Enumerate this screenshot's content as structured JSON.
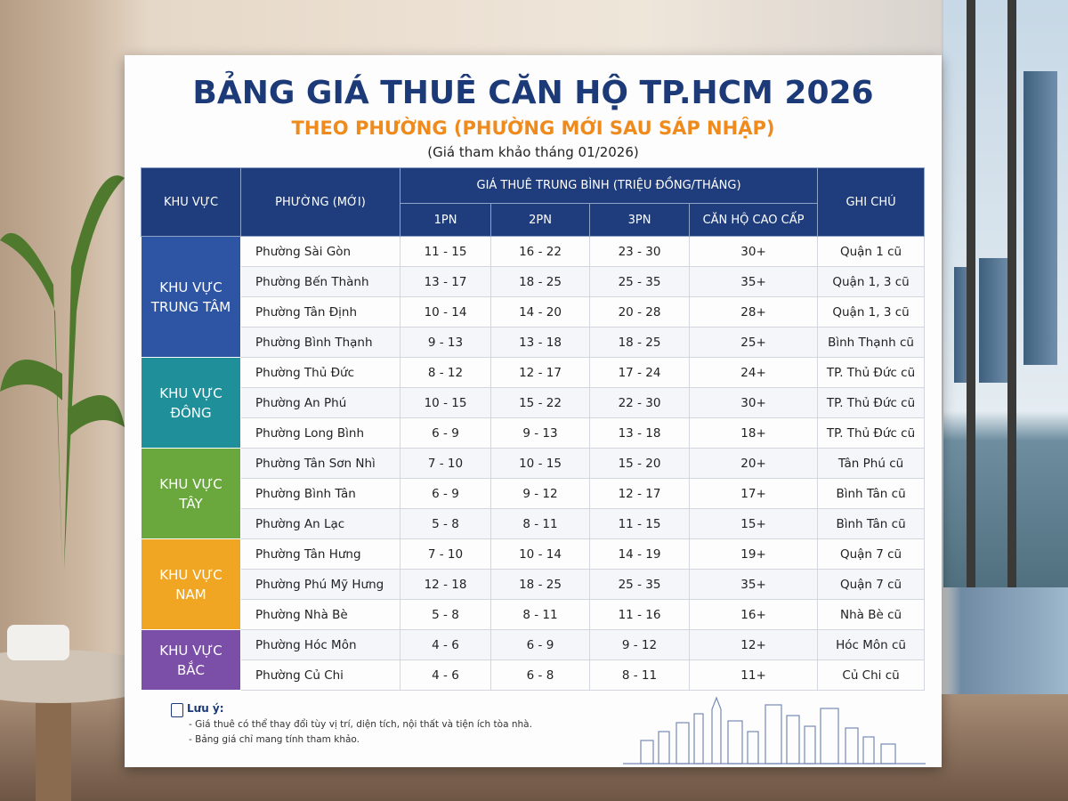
{
  "header": {
    "title": "BẢNG GIÁ THUÊ CĂN HỘ TP.HCM 2026",
    "subtitle": "THEO PHƯỜNG (PHƯỜNG MỚI SAU SÁP NHẬP)",
    "date_note": "(Giá tham khảo tháng 01/2026)"
  },
  "table": {
    "headers": {
      "region": "KHU VỰC",
      "ward": "PHƯỜNG (MỚI)",
      "price_group": "GIÁ THUÊ TRUNG BÌNH (TRIỆU ĐỒNG/THÁNG)",
      "price_columns": [
        "1PN",
        "2PN",
        "3PN",
        "CĂN HỘ CAO CẤP"
      ],
      "note": "GHI CHÚ"
    },
    "regions": [
      {
        "name": "KHU VỰC TRUNG TÂM",
        "color": "#2d55a3",
        "rows": [
          [
            "Phường Sài Gòn",
            "11 - 15",
            "16 - 22",
            "23 - 30",
            "30+",
            "Quận 1 cũ"
          ],
          [
            "Phường Bến Thành",
            "13 - 17",
            "18 - 25",
            "25 - 35",
            "35+",
            "Quận 1, 3 cũ"
          ],
          [
            "Phường Tân Định",
            "10 - 14",
            "14 - 20",
            "20 - 28",
            "28+",
            "Quận 1, 3 cũ"
          ],
          [
            "Phường Bình Thạnh",
            "9 - 13",
            "13 - 18",
            "18 - 25",
            "25+",
            "Bình Thạnh cũ"
          ]
        ]
      },
      {
        "name": "KHU VỰC ĐÔNG",
        "color": "#1f8f9a",
        "rows": [
          [
            "Phường Thủ Đức",
            "8 - 12",
            "12 - 17",
            "17 - 24",
            "24+",
            "TP. Thủ Đức cũ"
          ],
          [
            "Phường An Phú",
            "10 - 15",
            "15 - 22",
            "22 - 30",
            "30+",
            "TP. Thủ Đức cũ"
          ],
          [
            "Phường Long Bình",
            "6 - 9",
            "9 - 13",
            "13 - 18",
            "18+",
            "TP. Thủ Đức cũ"
          ]
        ]
      },
      {
        "name": "KHU VỰC TÂY",
        "color": "#6aa83d",
        "rows": [
          [
            "Phường Tân Sơn Nhì",
            "7 - 10",
            "10 - 15",
            "15 - 20",
            "20+",
            "Tân Phú cũ"
          ],
          [
            "Phường Bình Tân",
            "6 - 9",
            "9 - 12",
            "12 - 17",
            "17+",
            "Bình Tân cũ"
          ],
          [
            "Phường An Lạc",
            "5 - 8",
            "8 - 11",
            "11 - 15",
            "15+",
            "Bình Tân cũ"
          ]
        ]
      },
      {
        "name": "KHU VỰC NAM",
        "color": "#f0a623",
        "rows": [
          [
            "Phường Tân Hưng",
            "7 - 10",
            "10 - 14",
            "14 - 19",
            "19+",
            "Quận 7 cũ"
          ],
          [
            "Phường Phú Mỹ Hưng",
            "12 - 18",
            "18 - 25",
            "25 - 35",
            "35+",
            "Quận 7 cũ"
          ],
          [
            "Phường Nhà Bè",
            "5 - 8",
            "8 - 11",
            "11 - 16",
            "16+",
            "Nhà Bè cũ"
          ]
        ]
      },
      {
        "name": "KHU VỰC BẮC",
        "color": "#7b4fa8",
        "rows": [
          [
            "Phường Hóc Môn",
            "4 - 6",
            "6 - 9",
            "9 - 12",
            "12+",
            "Hóc Môn cũ"
          ],
          [
            "Phường Củ Chi",
            "4 - 6",
            "6 - 8",
            "8 - 11",
            "11+",
            "Củ Chi cũ"
          ]
        ]
      }
    ]
  },
  "footer": {
    "title": "Lưu ý:",
    "items": [
      "- Giá thuê có thể thay đổi tùy vị trí, diện tích, nội thất và tiện ích tòa nhà.",
      "- Bảng giá chỉ mang tính tham khảo."
    ]
  }
}
